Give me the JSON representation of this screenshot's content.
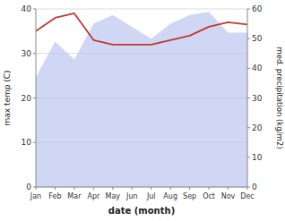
{
  "chart_data": {
    "type": "line",
    "x_label": "date (month)",
    "y_label": "max temp (C)",
    "y2_label": "med. precipitation (kg/m2)",
    "categories": [
      "Jan",
      "Feb",
      "Mar",
      "Apr",
      "May",
      "Jun",
      "Jul",
      "Aug",
      "Sep",
      "Oct",
      "Nov",
      "Dec"
    ],
    "series": [
      {
        "type": "area",
        "axis": "y2",
        "color": "#b0bcee",
        "values": [
          37,
          49,
          43,
          55,
          58,
          54,
          50,
          55,
          58,
          59,
          52,
          52
        ]
      },
      {
        "type": "line",
        "color": "#c0392b",
        "values": [
          35,
          38,
          39,
          33,
          32,
          32,
          32,
          33,
          34,
          36,
          37,
          36.5
        ]
      }
    ],
    "ylim": [
      0,
      40
    ],
    "yticks": [
      0,
      10,
      20,
      30,
      40
    ],
    "y2lim": [
      0,
      60
    ],
    "y2ticks": [
      0,
      10,
      20,
      30,
      40,
      50,
      60
    ],
    "grid": true
  }
}
